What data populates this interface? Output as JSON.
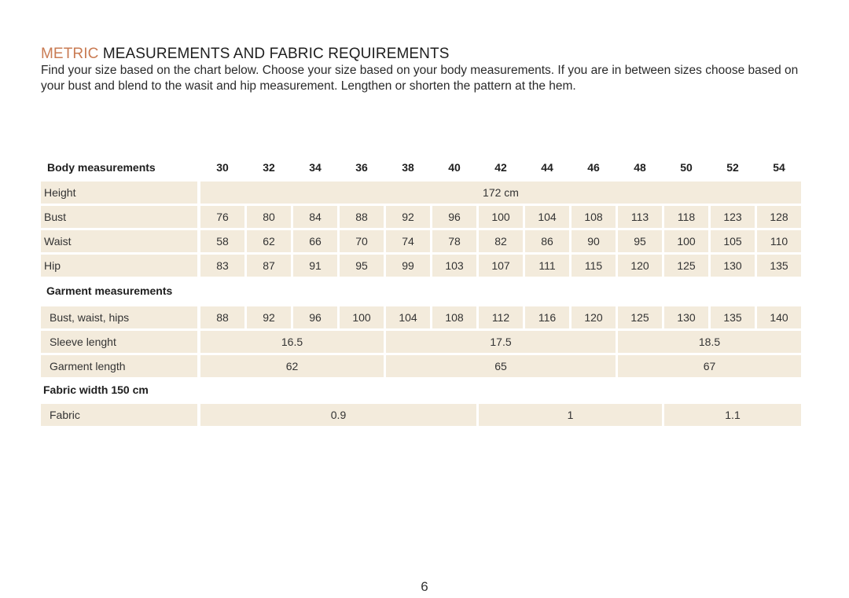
{
  "title": {
    "accent": "METRIC",
    "rest": " MEASUREMENTS AND FABRIC REQUIREMENTS"
  },
  "intro": "Find your size based on the chart below. Choose your size based on your body measurements. If you are in between sizes choose based on your bust and blend to the wasit and hip measurement. Lengthen or shorten the pattern at the hem.",
  "colors": {
    "accent": "#c97b53",
    "cell_bg": "#f3ebdc"
  },
  "table": {
    "header_label": "Body measurements",
    "sizes": [
      "30",
      "32",
      "34",
      "36",
      "38",
      "40",
      "42",
      "44",
      "46",
      "48",
      "50",
      "52",
      "54"
    ],
    "body_rows": [
      {
        "label": "Height",
        "cells": [
          {
            "value": "172 cm",
            "span": 13
          }
        ]
      },
      {
        "label": "Bust",
        "values": [
          "76",
          "80",
          "84",
          "88",
          "92",
          "96",
          "100",
          "104",
          "108",
          "113",
          "118",
          "123",
          "128"
        ]
      },
      {
        "label": "Waist",
        "values": [
          "58",
          "62",
          "66",
          "70",
          "74",
          "78",
          "82",
          "86",
          "90",
          "95",
          "100",
          "105",
          "110"
        ]
      },
      {
        "label": "Hip",
        "values": [
          "83",
          "87",
          "91",
          "95",
          "99",
          "103",
          "107",
          "111",
          "115",
          "120",
          "125",
          "130",
          "135"
        ]
      }
    ],
    "garment_heading": "Garment measurements",
    "garment_rows": [
      {
        "label": "Bust, waist, hips",
        "values": [
          "88",
          "92",
          "96",
          "100",
          "104",
          "108",
          "112",
          "116",
          "120",
          "125",
          "130",
          "135",
          "140"
        ]
      },
      {
        "label": "Sleeve lenght",
        "cells": [
          {
            "value": "16.5",
            "span": 4
          },
          {
            "value": "17.5",
            "span": 5
          },
          {
            "value": "18.5",
            "span": 4
          }
        ]
      },
      {
        "label": "Garment length",
        "cells": [
          {
            "value": "62",
            "span": 4
          },
          {
            "value": "65",
            "span": 5
          },
          {
            "value": "67",
            "span": 4
          }
        ]
      }
    ],
    "fabric_heading": "Fabric width 150 cm",
    "fabric_rows": [
      {
        "label": "Fabric",
        "cells": [
          {
            "value": "0.9",
            "span": 6
          },
          {
            "value": "1",
            "span": 4
          },
          {
            "value": "1.1",
            "span": 3
          }
        ]
      }
    ]
  },
  "page_number": "6"
}
